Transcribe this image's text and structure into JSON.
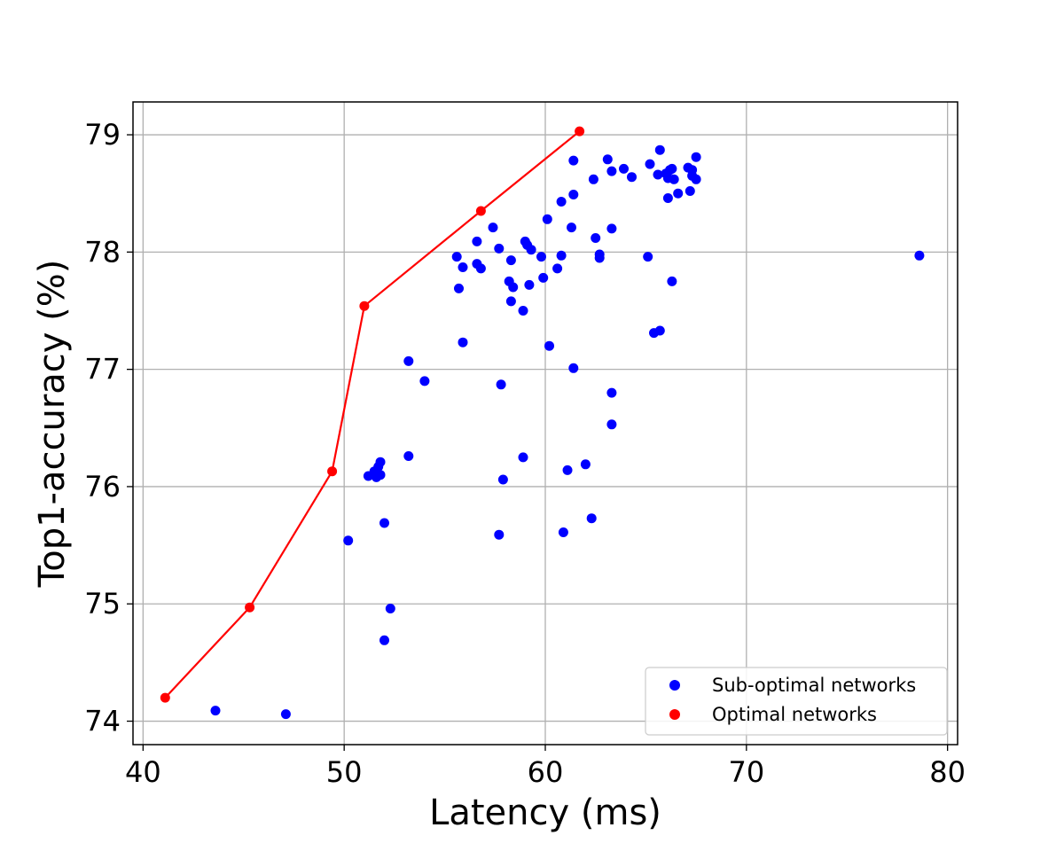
{
  "chart_data": {
    "type": "scatter",
    "xlabel": "Latency (ms)",
    "ylabel": "Top1-accuracy (%)",
    "xlim": [
      39.5,
      80.5
    ],
    "ylim": [
      73.8,
      79.28
    ],
    "xticks": [
      40,
      50,
      60,
      70,
      80
    ],
    "yticks": [
      74,
      75,
      76,
      77,
      78,
      79
    ],
    "grid": true,
    "legend_position": "lower-right",
    "series": [
      {
        "name": "Sub-optimal networks",
        "color": "#0000ff",
        "mode": "markers",
        "points": [
          [
            43.6,
            74.09
          ],
          [
            47.1,
            74.06
          ],
          [
            50.2,
            75.54
          ],
          [
            52.0,
            74.69
          ],
          [
            52.3,
            74.96
          ],
          [
            52.0,
            75.69
          ],
          [
            51.2,
            76.09
          ],
          [
            51.5,
            76.13
          ],
          [
            51.6,
            76.08
          ],
          [
            51.7,
            76.17
          ],
          [
            51.8,
            76.21
          ],
          [
            51.8,
            76.1
          ],
          [
            53.2,
            76.26
          ],
          [
            53.2,
            77.07
          ],
          [
            54.0,
            76.9
          ],
          [
            55.6,
            77.96
          ],
          [
            55.7,
            77.69
          ],
          [
            55.9,
            77.87
          ],
          [
            55.9,
            77.23
          ],
          [
            56.6,
            78.09
          ],
          [
            56.6,
            77.9
          ],
          [
            56.8,
            77.86
          ],
          [
            57.4,
            78.21
          ],
          [
            57.7,
            78.03
          ],
          [
            57.7,
            75.59
          ],
          [
            57.8,
            76.87
          ],
          [
            57.9,
            76.06
          ],
          [
            58.2,
            77.75
          ],
          [
            58.3,
            77.93
          ],
          [
            58.3,
            77.58
          ],
          [
            58.4,
            77.7
          ],
          [
            58.9,
            77.5
          ],
          [
            58.9,
            76.25
          ],
          [
            59.0,
            78.09
          ],
          [
            59.1,
            78.06
          ],
          [
            59.2,
            77.72
          ],
          [
            59.3,
            78.02
          ],
          [
            59.8,
            77.96
          ],
          [
            59.9,
            77.78
          ],
          [
            60.1,
            78.28
          ],
          [
            60.2,
            77.2
          ],
          [
            60.6,
            77.86
          ],
          [
            60.8,
            77.97
          ],
          [
            60.8,
            78.43
          ],
          [
            60.9,
            75.61
          ],
          [
            61.1,
            76.14
          ],
          [
            61.3,
            78.21
          ],
          [
            61.4,
            77.01
          ],
          [
            61.4,
            78.49
          ],
          [
            61.4,
            78.78
          ],
          [
            62.0,
            76.19
          ],
          [
            62.3,
            75.73
          ],
          [
            62.4,
            78.62
          ],
          [
            62.5,
            78.12
          ],
          [
            62.7,
            77.98
          ],
          [
            62.7,
            77.95
          ],
          [
            63.1,
            78.79
          ],
          [
            63.3,
            78.69
          ],
          [
            63.3,
            78.2
          ],
          [
            63.3,
            76.8
          ],
          [
            63.3,
            76.53
          ],
          [
            63.9,
            78.71
          ],
          [
            64.3,
            78.64
          ],
          [
            65.1,
            77.96
          ],
          [
            65.2,
            78.75
          ],
          [
            65.4,
            77.31
          ],
          [
            65.6,
            78.66
          ],
          [
            65.7,
            78.87
          ],
          [
            65.7,
            77.33
          ],
          [
            66.0,
            78.67
          ],
          [
            66.1,
            78.63
          ],
          [
            66.1,
            78.46
          ],
          [
            66.2,
            78.7
          ],
          [
            66.3,
            78.71
          ],
          [
            66.3,
            77.75
          ],
          [
            66.4,
            78.62
          ],
          [
            66.6,
            78.5
          ],
          [
            67.1,
            78.72
          ],
          [
            67.2,
            78.52
          ],
          [
            67.3,
            78.7
          ],
          [
            67.3,
            78.65
          ],
          [
            67.5,
            78.62
          ],
          [
            67.5,
            78.81
          ],
          [
            78.6,
            77.97
          ]
        ]
      },
      {
        "name": "Optimal networks",
        "color": "#ff0000",
        "mode": "line+markers",
        "points": [
          [
            41.1,
            74.2
          ],
          [
            45.3,
            74.97
          ],
          [
            49.4,
            76.13
          ],
          [
            51.0,
            77.54
          ],
          [
            56.8,
            78.35
          ],
          [
            61.7,
            79.03
          ]
        ]
      }
    ]
  }
}
